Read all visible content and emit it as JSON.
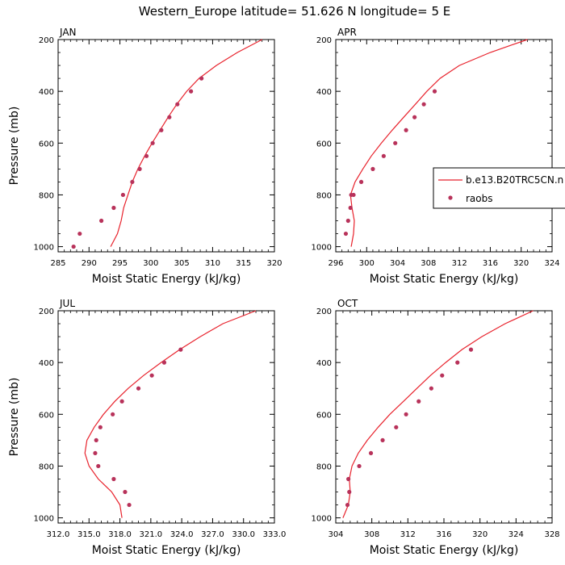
{
  "title": "Western_Europe  latitude= 51.626 N longitude= 5 E",
  "colors": {
    "model": "#e8222c",
    "obs": "#b8325a",
    "frame": "#000000"
  },
  "legend": {
    "model_label": "b.e13.B20TRC5CN.n",
    "obs_label": "raobs"
  },
  "chart_data": [
    {
      "type": "scatter",
      "panel": "JAN",
      "xlabel": "",
      "ylabel": "Pressure (mb)",
      "xlim": [
        285,
        320
      ],
      "ylim": [
        1020,
        200
      ],
      "xticks": [
        285,
        290,
        295,
        300,
        305,
        310,
        315,
        320
      ],
      "xtick_labels": [
        "285",
        "290",
        "295",
        "300",
        "305",
        "310",
        "315",
        "320"
      ],
      "yticks": [
        200,
        400,
        600,
        800,
        1000
      ],
      "ytick_labels": [
        "200",
        "400",
        "600",
        "800",
        "1000"
      ],
      "model": {
        "x": [
          293.5,
          294.6,
          295.2,
          295.6,
          296.3,
          297.0,
          297.9,
          299.0,
          300.2,
          301.5,
          302.8,
          304.2,
          305.8,
          307.8,
          310.6,
          314.0,
          318.0
        ],
        "y": [
          1000,
          950,
          900,
          850,
          800,
          750,
          700,
          650,
          600,
          550,
          500,
          450,
          400,
          350,
          300,
          250,
          200
        ]
      },
      "obs": {
        "x": [
          287.5,
          288.5,
          292.0,
          294.0,
          295.5,
          297.0,
          298.2,
          299.3,
          300.3,
          301.7,
          303.0,
          304.3,
          306.5,
          308.2
        ],
        "y": [
          1000,
          950,
          900,
          850,
          800,
          750,
          700,
          650,
          600,
          550,
          500,
          450,
          400,
          350
        ]
      }
    },
    {
      "type": "scatter",
      "panel": "APR",
      "xlabel": "",
      "ylabel": "",
      "xlim": [
        296,
        324
      ],
      "ylim": [
        1020,
        200
      ],
      "xticks": [
        296,
        300,
        304,
        308,
        312,
        316,
        320,
        324
      ],
      "xtick_labels": [
        "296",
        "300",
        "304",
        "308",
        "312",
        "316",
        "320",
        "324"
      ],
      "yticks": [
        200,
        400,
        600,
        800,
        1000
      ],
      "ytick_labels": [
        "200",
        "400",
        "600",
        "800",
        "1000"
      ],
      "model": {
        "x": [
          298.0,
          298.3,
          298.4,
          298.1,
          297.9,
          298.5,
          299.5,
          300.6,
          301.9,
          303.3,
          304.8,
          306.3,
          307.8,
          309.5,
          312.0,
          316.0,
          320.8
        ],
        "y": [
          1000,
          950,
          900,
          850,
          800,
          750,
          700,
          650,
          600,
          550,
          500,
          450,
          400,
          350,
          300,
          250,
          200
        ]
      },
      "obs": {
        "x": [
          297.3,
          297.6,
          297.9,
          298.0,
          298.3,
          299.3,
          300.8,
          302.2,
          303.7,
          305.1,
          306.2,
          307.4,
          308.8
        ],
        "y": [
          950,
          900,
          850,
          800,
          800,
          750,
          700,
          650,
          600,
          550,
          500,
          450,
          400
        ]
      }
    },
    {
      "type": "scatter",
      "panel": "JUL",
      "xlabel": "",
      "ylabel": "Pressure (mb)",
      "xlim": [
        312.0,
        333.0
      ],
      "ylim": [
        1020,
        200
      ],
      "xticks": [
        312.0,
        315.0,
        318.0,
        321.0,
        324.0,
        327.0,
        330.0,
        333.0
      ],
      "xtick_labels": [
        "312.0",
        "315.0",
        "318.0",
        "321.0",
        "324.0",
        "327.0",
        "330.0",
        "333.0"
      ],
      "yticks": [
        200,
        400,
        600,
        800,
        1000
      ],
      "ytick_labels": [
        "200",
        "400",
        "600",
        "800",
        "1000"
      ],
      "model": {
        "x": [
          318.2,
          318.0,
          317.2,
          315.9,
          315.0,
          314.6,
          314.8,
          315.5,
          316.4,
          317.5,
          318.8,
          320.3,
          322.0,
          323.8,
          325.8,
          328.0,
          331.2
        ],
        "y": [
          1000,
          950,
          900,
          850,
          800,
          750,
          700,
          650,
          600,
          550,
          500,
          450,
          400,
          350,
          300,
          250,
          200
        ]
      },
      "obs": {
        "x": [
          318.9,
          318.5,
          317.4,
          315.9,
          315.6,
          315.7,
          316.1,
          317.3,
          318.2,
          319.8,
          321.1,
          322.3,
          323.9
        ],
        "y": [
          950,
          900,
          850,
          800,
          750,
          700,
          650,
          600,
          550,
          500,
          450,
          400,
          350
        ]
      }
    },
    {
      "type": "scatter",
      "panel": "OCT",
      "xlabel": "",
      "ylabel": "",
      "xlim": [
        304,
        328
      ],
      "ylim": [
        1020,
        200
      ],
      "xticks": [
        304,
        308,
        312,
        316,
        320,
        324,
        328
      ],
      "xtick_labels": [
        "304",
        "308",
        "312",
        "316",
        "320",
        "324",
        "328"
      ],
      "yticks": [
        200,
        400,
        600,
        800,
        1000
      ],
      "ytick_labels": [
        "200",
        "400",
        "600",
        "800",
        "1000"
      ],
      "model": {
        "x": [
          304.8,
          305.4,
          305.6,
          305.5,
          305.8,
          306.5,
          307.5,
          308.7,
          310.0,
          311.5,
          313.0,
          314.5,
          316.2,
          318.0,
          320.2,
          322.8,
          325.9
        ],
        "y": [
          1000,
          950,
          900,
          850,
          800,
          750,
          700,
          650,
          600,
          550,
          500,
          450,
          400,
          350,
          300,
          250,
          200
        ]
      },
      "obs": {
        "x": [
          305.3,
          305.5,
          305.4,
          306.6,
          307.9,
          309.2,
          310.7,
          311.8,
          313.2,
          314.6,
          315.8,
          317.5,
          319.0
        ],
        "y": [
          950,
          900,
          850,
          800,
          750,
          700,
          650,
          600,
          550,
          500,
          450,
          400,
          350
        ]
      }
    }
  ],
  "shared_xlabel": "Moist Static Energy (kJ/kg)"
}
